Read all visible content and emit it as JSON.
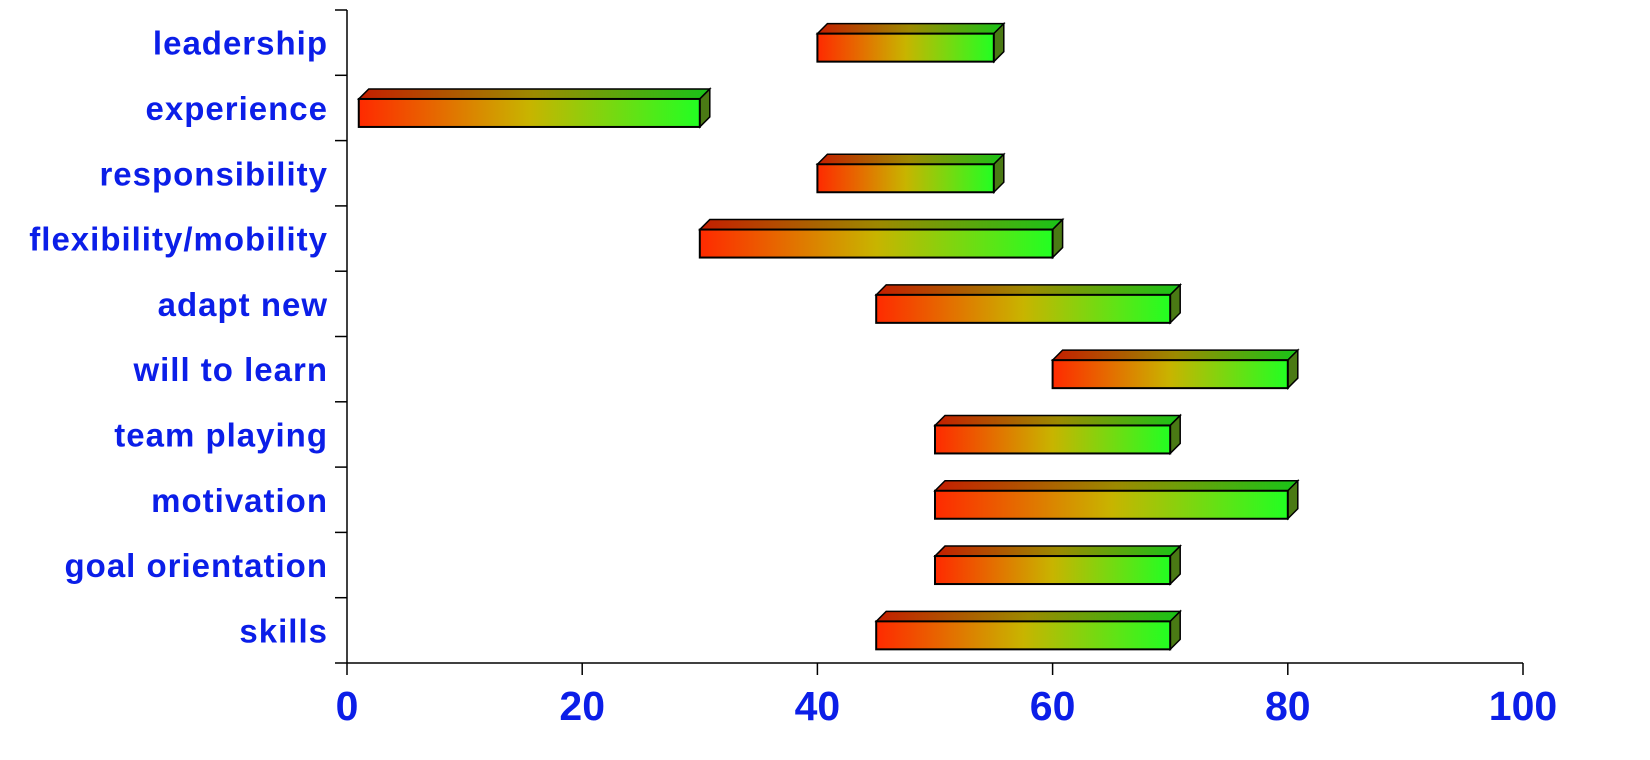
{
  "chart_data": {
    "type": "bar",
    "orientation": "horizontal",
    "style": "floating-range-3d",
    "categories": [
      "leadership",
      "experience",
      "responsibility",
      "flexibility/mobility",
      "adapt new",
      "will to learn",
      "team playing",
      "motivation",
      "goal orientation",
      "skills"
    ],
    "ranges": [
      [
        40,
        55
      ],
      [
        1,
        30
      ],
      [
        40,
        55
      ],
      [
        30,
        60
      ],
      [
        45,
        70
      ],
      [
        60,
        80
      ],
      [
        50,
        70
      ],
      [
        50,
        80
      ],
      [
        50,
        70
      ],
      [
        45,
        70
      ]
    ],
    "x_ticks": [
      "0",
      "20",
      "40",
      "60",
      "80",
      "100"
    ],
    "xlim": [
      0,
      100
    ],
    "title": "",
    "xlabel": "",
    "ylabel": "",
    "grid": false,
    "legend": "none",
    "colors": {
      "gradient_start": "#ff2a00",
      "gradient_mid": "#c8b400",
      "gradient_end": "#22ff22",
      "label_color": "#0b1ee8",
      "outline": "#000000"
    }
  }
}
